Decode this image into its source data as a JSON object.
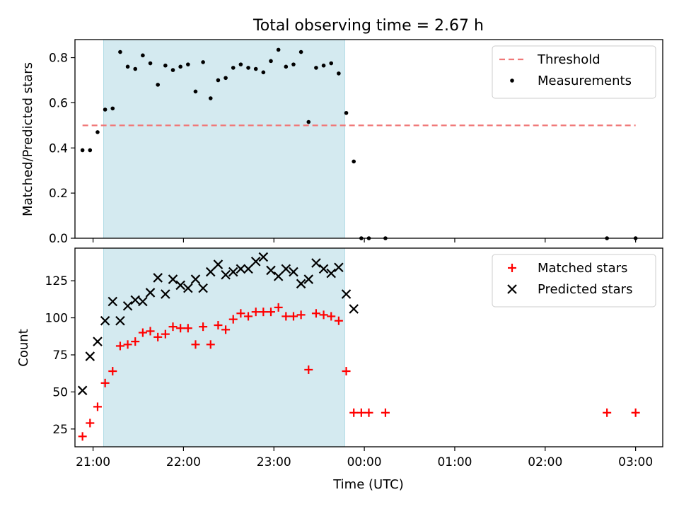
{
  "chart_data": [
    {
      "type": "scatter",
      "title": "Total observing time = 2.67 h",
      "xlabel": "",
      "ylabel": "Matched/Predicted stars",
      "ylim": [
        0,
        0.88
      ],
      "yticks": [
        0.0,
        0.2,
        0.4,
        0.6,
        0.8
      ],
      "ytick_labels": [
        "0.0",
        "0.2",
        "0.4",
        "0.6",
        "0.8"
      ],
      "xlim": [
        "20:48",
        "03:18"
      ],
      "xticks": [
        "21:00",
        "22:00",
        "23:00",
        "00:00",
        "01:00",
        "02:00",
        "03:00"
      ],
      "shaded_span": [
        "21:07",
        "23:47"
      ],
      "shade_color": "#d4eaf0",
      "legend_position": "upper right",
      "threshold": {
        "name": "Threshold",
        "value": 0.5,
        "x_range": [
          "20:53",
          "03:00"
        ],
        "color": "#f07878",
        "style": "dashed"
      },
      "series": [
        {
          "name": "Measurements",
          "color": "#000000",
          "marker": "dot",
          "points": [
            [
              "20:53",
              0.39
            ],
            [
              "20:58",
              0.39
            ],
            [
              "21:03",
              0.47
            ],
            [
              "21:08",
              0.57
            ],
            [
              "21:13",
              0.575
            ],
            [
              "21:18",
              0.825
            ],
            [
              "21:23",
              0.76
            ],
            [
              "21:28",
              0.75
            ],
            [
              "21:33",
              0.81
            ],
            [
              "21:38",
              0.775
            ],
            [
              "21:43",
              0.68
            ],
            [
              "21:48",
              0.765
            ],
            [
              "21:53",
              0.745
            ],
            [
              "21:58",
              0.76
            ],
            [
              "22:03",
              0.77
            ],
            [
              "22:08",
              0.65
            ],
            [
              "22:13",
              0.78
            ],
            [
              "22:18",
              0.62
            ],
            [
              "22:23",
              0.7
            ],
            [
              "22:28",
              0.71
            ],
            [
              "22:33",
              0.755
            ],
            [
              "22:38",
              0.77
            ],
            [
              "22:43",
              0.755
            ],
            [
              "22:48",
              0.75
            ],
            [
              "22:53",
              0.735
            ],
            [
              "22:58",
              0.785
            ],
            [
              "23:03",
              0.835
            ],
            [
              "23:08",
              0.76
            ],
            [
              "23:13",
              0.77
            ],
            [
              "23:18",
              0.825
            ],
            [
              "23:23",
              0.515
            ],
            [
              "23:28",
              0.755
            ],
            [
              "23:33",
              0.765
            ],
            [
              "23:38",
              0.775
            ],
            [
              "23:43",
              0.73
            ],
            [
              "23:48",
              0.555
            ],
            [
              "23:53",
              0.34
            ],
            [
              "23:58",
              0.0
            ],
            [
              "00:03",
              0.0
            ],
            [
              "00:14",
              0.0
            ],
            [
              "02:41",
              0.0
            ],
            [
              "03:00",
              0.0
            ]
          ]
        }
      ]
    },
    {
      "type": "scatter",
      "title": "",
      "xlabel": "Time (UTC)",
      "ylabel": "Count",
      "ylim": [
        13,
        147
      ],
      "yticks": [
        25,
        50,
        75,
        100,
        125
      ],
      "ytick_labels": [
        "25",
        "50",
        "75",
        "100",
        "125"
      ],
      "xlim": [
        "20:48",
        "03:18"
      ],
      "xticks": [
        "21:00",
        "22:00",
        "23:00",
        "00:00",
        "01:00",
        "02:00",
        "03:00"
      ],
      "xtick_labels": [
        "21:00",
        "22:00",
        "23:00",
        "00:00",
        "01:00",
        "02:00",
        "03:00"
      ],
      "shaded_span": [
        "21:07",
        "23:47"
      ],
      "shade_color": "#d4eaf0",
      "legend_position": "upper right",
      "series": [
        {
          "name": "Matched stars",
          "color": "#ff0000",
          "marker": "plus",
          "points": [
            [
              "20:53",
              20
            ],
            [
              "20:58",
              29
            ],
            [
              "21:03",
              40
            ],
            [
              "21:08",
              56
            ],
            [
              "21:13",
              64
            ],
            [
              "21:18",
              81
            ],
            [
              "21:23",
              82
            ],
            [
              "21:28",
              84
            ],
            [
              "21:33",
              90
            ],
            [
              "21:38",
              91
            ],
            [
              "21:43",
              87
            ],
            [
              "21:48",
              89
            ],
            [
              "21:53",
              94
            ],
            [
              "21:58",
              93
            ],
            [
              "22:03",
              93
            ],
            [
              "22:08",
              82
            ],
            [
              "22:13",
              94
            ],
            [
              "22:18",
              82
            ],
            [
              "22:23",
              95
            ],
            [
              "22:28",
              92
            ],
            [
              "22:33",
              99
            ],
            [
              "22:38",
              103
            ],
            [
              "22:43",
              101
            ],
            [
              "22:48",
              104
            ],
            [
              "22:53",
              104
            ],
            [
              "22:58",
              104
            ],
            [
              "23:03",
              107
            ],
            [
              "23:08",
              101
            ],
            [
              "23:13",
              101
            ],
            [
              "23:18",
              102
            ],
            [
              "23:23",
              65
            ],
            [
              "23:28",
              103
            ],
            [
              "23:33",
              102
            ],
            [
              "23:38",
              101
            ],
            [
              "23:43",
              98
            ],
            [
              "23:48",
              64
            ],
            [
              "23:53",
              36
            ],
            [
              "23:58",
              36
            ],
            [
              "00:03",
              36
            ],
            [
              "00:14",
              36
            ],
            [
              "02:41",
              36
            ],
            [
              "03:00",
              36
            ]
          ]
        },
        {
          "name": "Predicted stars",
          "color": "#000000",
          "marker": "x",
          "points": [
            [
              "20:53",
              51
            ],
            [
              "20:58",
              74
            ],
            [
              "21:03",
              84
            ],
            [
              "21:08",
              98
            ],
            [
              "21:13",
              111
            ],
            [
              "21:18",
              98
            ],
            [
              "21:23",
              108
            ],
            [
              "21:28",
              112
            ],
            [
              "21:33",
              111
            ],
            [
              "21:38",
              117
            ],
            [
              "21:43",
              127
            ],
            [
              "21:48",
              116
            ],
            [
              "21:53",
              126
            ],
            [
              "21:58",
              122
            ],
            [
              "22:03",
              120
            ],
            [
              "22:08",
              126
            ],
            [
              "22:13",
              120
            ],
            [
              "22:18",
              131
            ],
            [
              "22:23",
              136
            ],
            [
              "22:28",
              129
            ],
            [
              "22:33",
              131
            ],
            [
              "22:38",
              133
            ],
            [
              "22:43",
              133
            ],
            [
              "22:48",
              138
            ],
            [
              "22:53",
              141
            ],
            [
              "22:58",
              132
            ],
            [
              "23:03",
              128
            ],
            [
              "23:08",
              133
            ],
            [
              "23:13",
              131
            ],
            [
              "23:18",
              123
            ],
            [
              "23:23",
              126
            ],
            [
              "23:28",
              137
            ],
            [
              "23:33",
              133
            ],
            [
              "23:38",
              130
            ],
            [
              "23:43",
              134
            ],
            [
              "23:48",
              116
            ],
            [
              "23:53",
              106
            ]
          ]
        }
      ]
    }
  ]
}
